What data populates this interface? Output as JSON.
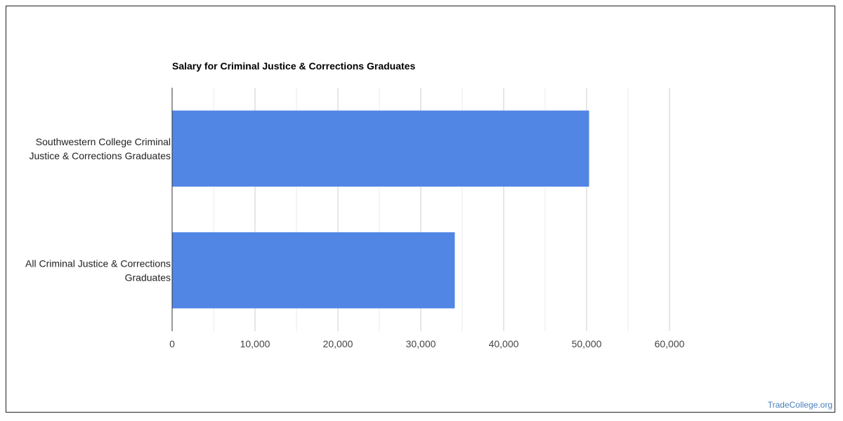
{
  "chart_data": {
    "type": "bar",
    "orientation": "horizontal",
    "title": "Salary for Criminal Justice & Corrections Graduates",
    "categories": [
      [
        "Southwestern College Criminal",
        "Justice & Corrections Graduates"
      ],
      [
        "All Criminal Justice & Corrections",
        "Graduates"
      ]
    ],
    "values": [
      50300,
      34100
    ],
    "xlim": [
      0,
      60000
    ],
    "x_ticks": [
      0,
      10000,
      20000,
      30000,
      40000,
      50000,
      60000
    ],
    "x_tick_labels": [
      "0",
      "10,000",
      "20,000",
      "30,000",
      "40,000",
      "50,000",
      "60,000"
    ],
    "grid": true,
    "bar_color": "#5286e4"
  },
  "watermark": "TradeCollege.org"
}
